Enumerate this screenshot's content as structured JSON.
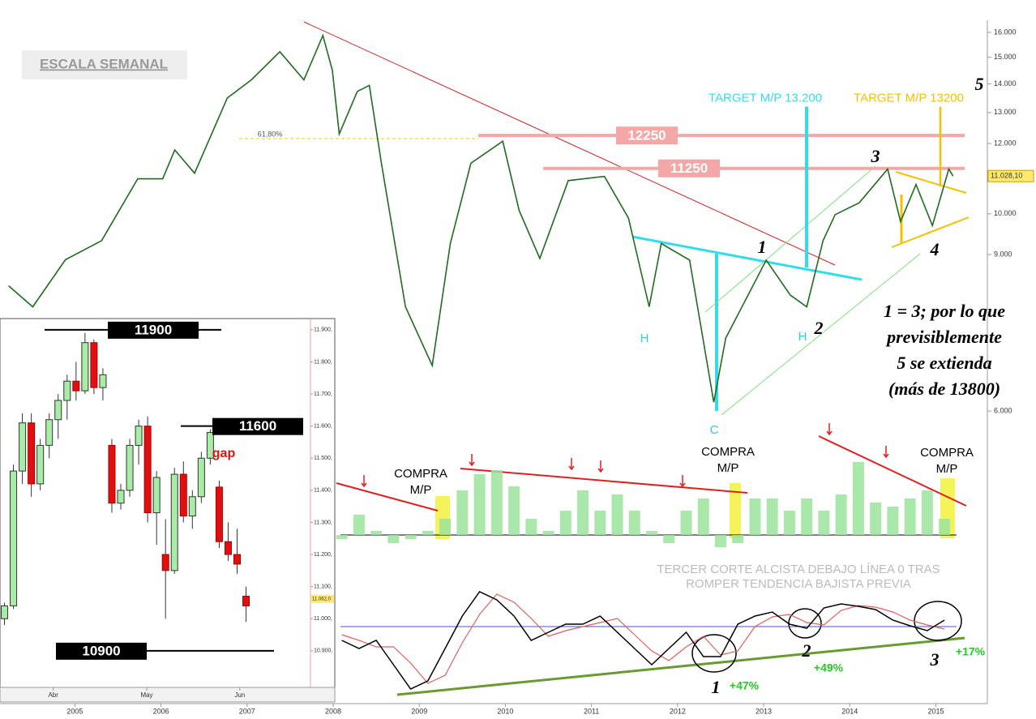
{
  "chart_data": [
    {
      "type": "line",
      "log_scale": true,
      "color": "#1f6b1f",
      "x": [
        2004.23,
        2004.51,
        2004.89,
        2005.31,
        2005.73,
        2006.02,
        2006.16,
        2006.39,
        2006.77,
        2007.05,
        2007.38,
        2007.66,
        2007.88,
        2007.99,
        2008.07,
        2008.28,
        2008.42,
        2008.56,
        2008.84,
        2009.15,
        2009.36,
        2009.6,
        2009.97,
        2010.16,
        2010.4,
        2010.73,
        2011.15,
        2011.43,
        2011.67,
        2011.81,
        2012.14,
        2012.42,
        2012.56,
        2013.03,
        2013.31,
        2013.5,
        2013.69,
        2013.83,
        2014.11,
        2014.44,
        2014.59,
        2014.77,
        2014.96,
        2015.15,
        2015.2
      ],
      "values": [
        8300,
        7860,
        8880,
        9330,
        10950,
        10950,
        11800,
        11110,
        13500,
        14150,
        15220,
        14150,
        15870,
        14500,
        12300,
        13730,
        13950,
        11400,
        7860,
        6750,
        9260,
        11400,
        12070,
        10090,
        8910,
        10900,
        11020,
        9890,
        7860,
        9260,
        8870,
        6140,
        7250,
        8870,
        8100,
        7860,
        9330,
        9980,
        10290,
        11230,
        9800,
        10790,
        9700,
        11230,
        11028
      ],
      "xlim": [
        2004.13,
        2015.57
      ],
      "xticks": [
        2005,
        2006,
        2007,
        2008,
        2009,
        2010,
        2011,
        2012,
        2013,
        2014,
        2015
      ],
      "ylim": [
        5600,
        17400
      ],
      "yticks": [
        {
          "value": 16000,
          "label": "16.000"
        },
        {
          "value": 15000,
          "label": "15.000"
        },
        {
          "value": 14000,
          "label": "14.000"
        },
        {
          "value": 13000,
          "label": "13.000"
        },
        {
          "value": 12000,
          "label": "12.000"
        },
        {
          "value": 10000,
          "label": "10.000"
        },
        {
          "value": 9000,
          "label": "9.000"
        },
        {
          "value": 6000,
          "label": "6.000"
        }
      ],
      "levels": [
        {
          "value": 12250,
          "label": "12250"
        },
        {
          "value": 11250,
          "label": "11250"
        }
      ],
      "targets": [
        {
          "value": 13200,
          "label": "TARGET M/P 13.200"
        },
        {
          "value": 13200,
          "label": "TARGET M/P 13200"
        }
      ],
      "price_tag": {
        "value": 11028.1,
        "label": "11.028,10"
      },
      "annotations": [
        "ESCALA SEMANAL",
        "61,80%",
        "5",
        "3",
        "1",
        "2",
        "4",
        "H",
        "H",
        "C",
        "1 = 3; por lo que",
        "previsiblemente",
        "5 se extienda",
        "(más de 13800)"
      ]
    },
    {
      "type": "bar",
      "color": "#9be39b",
      "x": [
        2008.1,
        2008.3,
        2008.5,
        2008.7,
        2008.9,
        2009.1,
        2009.3,
        2009.5,
        2009.7,
        2009.9,
        2010.1,
        2010.3,
        2010.5,
        2010.7,
        2010.9,
        2011.1,
        2011.3,
        2011.5,
        2011.7,
        2011.9,
        2012.1,
        2012.3,
        2012.5,
        2012.7,
        2012.9,
        2013.1,
        2013.3,
        2013.5,
        2013.7,
        2013.9,
        2014.1,
        2014.3,
        2014.5,
        2014.7,
        2014.9,
        2015.1
      ],
      "values": [
        -5,
        25,
        5,
        -10,
        -5,
        5,
        20,
        55,
        75,
        80,
        60,
        20,
        5,
        30,
        55,
        30,
        50,
        30,
        5,
        -10,
        30,
        45,
        -15,
        -10,
        45,
        45,
        30,
        45,
        30,
        50,
        90,
        40,
        35,
        45,
        55,
        20
      ],
      "ylim": [
        -40,
        100
      ],
      "annotations": [
        "COMPRA",
        "M/P",
        "COMPRA",
        "M/P",
        "COMPRA",
        "M/P"
      ]
    },
    {
      "type": "line",
      "x": [
        2008.1,
        2008.3,
        2008.5,
        2008.7,
        2008.9,
        2009.1,
        2009.3,
        2009.5,
        2009.7,
        2009.9,
        2010.1,
        2010.3,
        2010.5,
        2010.7,
        2010.9,
        2011.1,
        2011.3,
        2011.5,
        2011.7,
        2011.9,
        2012.1,
        2012.3,
        2012.5,
        2012.7,
        2012.9,
        2013.1,
        2013.3,
        2013.5,
        2013.7,
        2013.9,
        2014.1,
        2014.3,
        2014.5,
        2014.7,
        2014.9,
        2015.1
      ],
      "series": [
        {
          "color": "#000000",
          "values": [
            -17,
            -27,
            -17,
            -47,
            -77,
            -67,
            -27,
            13,
            43,
            33,
            13,
            -17,
            -7,
            3,
            3,
            13,
            -7,
            -27,
            -47,
            -27,
            -7,
            -37,
            -37,
            3,
            13,
            18,
            3,
            -2,
            23,
            28,
            25,
            21,
            8,
            1,
            -5,
            8
          ]
        },
        {
          "color": "#e06060",
          "values": [
            -10,
            -17,
            -25,
            -25,
            -45,
            -70,
            -60,
            -20,
            15,
            40,
            30,
            10,
            -12,
            -5,
            0,
            5,
            10,
            -10,
            -30,
            -42,
            -25,
            -12,
            -35,
            -30,
            0,
            12,
            15,
            5,
            2,
            20,
            26,
            24,
            18,
            8,
            2,
            -3
          ]
        }
      ],
      "ylim": [
        -87,
        53
      ],
      "annotations": [
        "TERCER CORTE ALCISTA DEBAJO LÍNEA 0 TRAS",
        "ROMPER TENDENCIA BAJISTA PREVIA",
        "1",
        "+47%",
        "2",
        "+49%",
        "3",
        "+17%"
      ]
    },
    {
      "type": "candlestick",
      "open": [
        11000,
        11040,
        11460,
        11610,
        11420,
        11540,
        11620,
        11680,
        11740,
        11710,
        11860,
        11720,
        11540,
        11360,
        11400,
        11540,
        11600,
        11330,
        11200,
        11150,
        11450,
        11320,
        11380,
        11500,
        11410,
        11240,
        11200,
        11070
      ],
      "high": [
        11050,
        11480,
        11640,
        11640,
        11560,
        11640,
        11700,
        11760,
        11800,
        11890,
        11870,
        11780,
        11560,
        11420,
        11560,
        11620,
        11630,
        11460,
        11310,
        11470,
        11490,
        11400,
        11520,
        11590,
        11430,
        11300,
        11280,
        11100
      ],
      "low": [
        10980,
        11030,
        11420,
        11380,
        11400,
        11500,
        11560,
        11620,
        11680,
        11700,
        11700,
        11680,
        11330,
        11340,
        11380,
        11480,
        11300,
        11230,
        11000,
        11140,
        11300,
        11280,
        11360,
        11480,
        11220,
        11180,
        11140,
        10990
      ],
      "close": [
        11040,
        11460,
        11610,
        11420,
        11540,
        11620,
        11680,
        11740,
        11710,
        11860,
        11720,
        11760,
        11360,
        11400,
        11540,
        11600,
        11330,
        11440,
        11150,
        11450,
        11320,
        11380,
        11500,
        11580,
        11240,
        11200,
        11170,
        11040
      ],
      "xlim": [
        -0.5,
        34.2
      ],
      "xticks": [
        {
          "value": 5.45,
          "label": "Abr"
        },
        {
          "value": 15.9,
          "label": "May"
        },
        {
          "value": 26.3,
          "label": "Jun"
        }
      ],
      "ylim": [
        10786,
        11935
      ],
      "yticks": [
        {
          "value": 11900,
          "label": "11.900,"
        },
        {
          "value": 11800,
          "label": "11.800,"
        },
        {
          "value": 11700,
          "label": "11.700,"
        },
        {
          "value": 11600,
          "label": "11.600,"
        },
        {
          "value": 11500,
          "label": "11.500,"
        },
        {
          "value": 11400,
          "label": "11.400,"
        },
        {
          "value": 11300,
          "label": "11.300,"
        },
        {
          "value": 11200,
          "label": "11.200,"
        },
        {
          "value": 11100,
          "label": "11.100,"
        },
        {
          "value": 11000,
          "label": "11.000,"
        },
        {
          "value": 10900,
          "label": "10.900,"
        }
      ],
      "levels": [
        {
          "value": 11900,
          "label": "11900"
        },
        {
          "value": 11600,
          "label": "11600"
        },
        {
          "value": 10900,
          "label": "10900"
        }
      ],
      "price_tag": {
        "value": 11062,
        "label": "11.062,0"
      },
      "annotations": [
        "gap"
      ]
    }
  ]
}
